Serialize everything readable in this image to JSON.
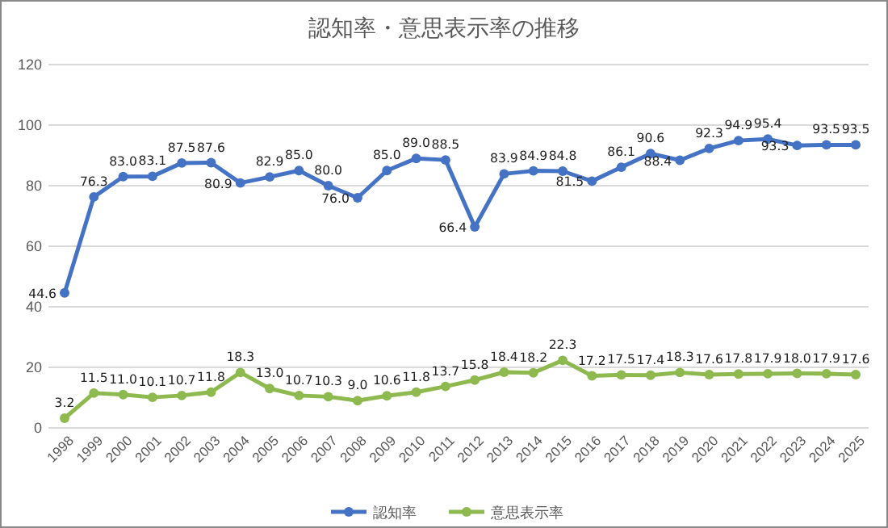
{
  "chart_data": {
    "type": "line",
    "title": "認知率・意思表示率の推移",
    "categories": [
      "1998",
      "1999",
      "2000",
      "2001",
      "2002",
      "2003",
      "2004",
      "2005",
      "2006",
      "2007",
      "2008",
      "2009",
      "2010",
      "2011",
      "2012",
      "2013",
      "2014",
      "2015",
      "2016",
      "2017",
      "2018",
      "2019",
      "2020",
      "2021",
      "2022",
      "2023",
      "2024",
      "2025"
    ],
    "series": [
      {
        "name": "認知率",
        "color": "#4472c4",
        "values": [
          44.6,
          76.3,
          83.0,
          83.1,
          87.5,
          87.6,
          80.9,
          82.9,
          85.0,
          80.0,
          76.0,
          85.0,
          89.0,
          88.5,
          66.4,
          83.9,
          84.9,
          84.8,
          81.5,
          86.1,
          90.6,
          88.4,
          92.3,
          94.9,
          95.4,
          93.3,
          93.5,
          93.5
        ],
        "value_labels": [
          "44.6",
          "76.3",
          "83.0",
          "83.1",
          "87.5",
          "87.6",
          "80.9",
          "82.9",
          "85.0",
          "80.0",
          "76.0",
          "85.0",
          "89.0",
          "88.5",
          "66.4",
          "83.9",
          "84.9",
          "84.8",
          "81.5",
          "86.1",
          "90.6",
          "88.4",
          "92.3",
          "94.9",
          "95.4",
          "93.3",
          "93.5",
          "93.5"
        ]
      },
      {
        "name": "意思表示率",
        "color": "#8db94f",
        "values": [
          3.2,
          11.5,
          11.0,
          10.1,
          10.7,
          11.8,
          18.3,
          13.0,
          10.7,
          10.3,
          9.0,
          10.6,
          11.8,
          13.7,
          15.8,
          18.4,
          18.2,
          22.3,
          17.2,
          17.5,
          17.4,
          18.3,
          17.6,
          17.8,
          17.9,
          18.0,
          17.9,
          17.6
        ],
        "value_labels": [
          "3.2",
          "11.5",
          "11.0",
          "10.1",
          "10.7",
          "11.8",
          "18.3",
          "13.0",
          "10.7",
          "10.3",
          "9.0",
          "10.6",
          "11.8",
          "13.7",
          "15.8",
          "18.4",
          "18.2",
          "22.3",
          "17.2",
          "17.5",
          "17.4",
          "18.3",
          "17.6",
          "17.8",
          "17.9",
          "18.0",
          "17.9",
          "17.6"
        ]
      }
    ],
    "ylim": [
      0,
      120
    ],
    "yticks": [
      0,
      20,
      40,
      60,
      80,
      100,
      120
    ],
    "grid": "y",
    "legend": "bottom",
    "marker": "circle",
    "line_style": "solid"
  }
}
